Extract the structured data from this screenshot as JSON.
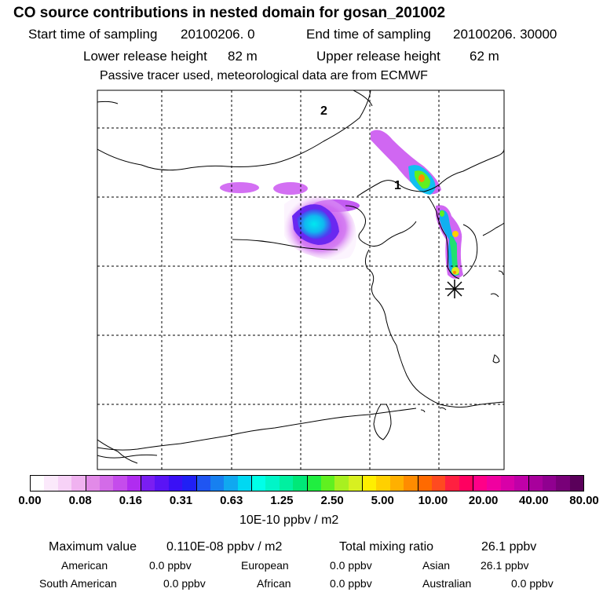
{
  "header": {
    "title": "CO  source contributions in nested domain for gosan_201002",
    "sampling_start_label": "Start time of sampling",
    "sampling_start_value": "20100206.     0",
    "sampling_end_label": "End time of sampling",
    "sampling_end_value": "20100206. 30000",
    "lower_height_label": "Lower release height",
    "lower_height_value": "82 m",
    "upper_height_label": "Upper release height",
    "upper_height_value": "62 m",
    "tracer_note": "Passive tracer used, meteorological data are from ECMWF"
  },
  "map": {
    "contour_labels": [
      "2",
      "1"
    ],
    "receptor_symbol": "asterisk",
    "grid_style": "dashed",
    "plume_description": "CO contribution plume over northern China and Korean peninsula"
  },
  "colorbar": {
    "tick_labels": [
      "0.00",
      "0.08",
      "0.16",
      "0.31",
      "0.63",
      "1.25",
      "2.50",
      "5.00",
      "10.00",
      "20.00",
      "40.00",
      "80.00"
    ],
    "units": "10E-10 ppbv / m2",
    "colors": [
      "#ffffff",
      "#fbe9fb",
      "#f7d2f7",
      "#f0b2f0",
      "#e28ae8",
      "#d36be8",
      "#c54cec",
      "#b02cf0",
      "#7a1ef2",
      "#5a14f5",
      "#3a10f5",
      "#2020f5",
      "#1f55f2",
      "#1780f0",
      "#10a8f0",
      "#00d8f2",
      "#00ffe8",
      "#00f5c8",
      "#00f0a0",
      "#00e878",
      "#20ee40",
      "#60f020",
      "#a8f020",
      "#d8f020",
      "#ffee00",
      "#ffd000",
      "#ffb000",
      "#ff8c00",
      "#ff6a00",
      "#ff4a20",
      "#ff2040",
      "#ff0060",
      "#ff0088",
      "#f000a0",
      "#d800a8",
      "#c000a8",
      "#a8009c",
      "#900090",
      "#780078",
      "#5a005a"
    ]
  },
  "stats": {
    "max_label": "Maximum value",
    "max_value": "0.110E-08 ppbv / m2",
    "total_label": "Total mixing ratio",
    "total_value": "26.1 ppbv"
  },
  "regions": [
    {
      "name": "American",
      "value": "0.0 ppbv"
    },
    {
      "name": "European",
      "value": "0.0 ppbv"
    },
    {
      "name": "Asian",
      "value": "26.1 ppbv"
    },
    {
      "name": "South American",
      "value": "0.0 ppbv"
    },
    {
      "name": "African",
      "value": "0.0 ppbv"
    },
    {
      "name": "Australian",
      "value": "0.0 ppbv"
    }
  ]
}
